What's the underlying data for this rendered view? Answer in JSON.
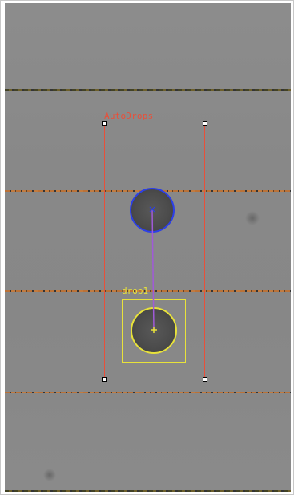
{
  "roi": {
    "label": "AutoDrops",
    "color": "#e8503a"
  },
  "drop": {
    "label": "drop1",
    "color": "#e8e23a",
    "source_outline_color": "#2c3fe8",
    "track_line_color": "#a05ad8"
  },
  "tape_line_colors": [
    "#c0702f",
    "#2a2a2a"
  ]
}
